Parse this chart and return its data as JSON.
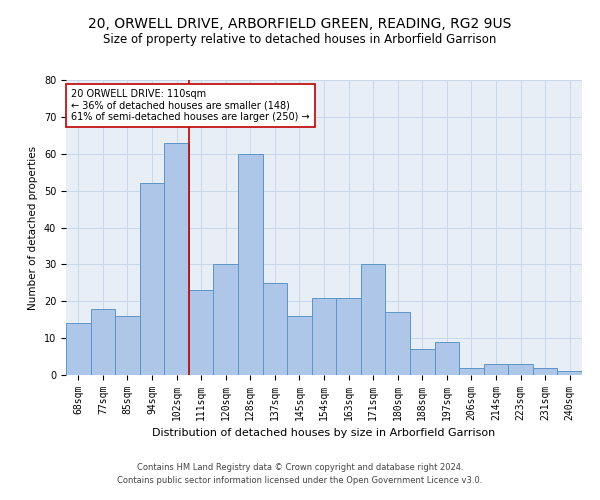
{
  "title": "20, ORWELL DRIVE, ARBORFIELD GREEN, READING, RG2 9US",
  "subtitle": "Size of property relative to detached houses in Arborfield Garrison",
  "xlabel": "Distribution of detached houses by size in Arborfield Garrison",
  "ylabel": "Number of detached properties",
  "footer1": "Contains HM Land Registry data © Crown copyright and database right 2024.",
  "footer2": "Contains public sector information licensed under the Open Government Licence v3.0.",
  "categories": [
    "68sqm",
    "77sqm",
    "85sqm",
    "94sqm",
    "102sqm",
    "111sqm",
    "120sqm",
    "128sqm",
    "137sqm",
    "145sqm",
    "154sqm",
    "163sqm",
    "171sqm",
    "180sqm",
    "188sqm",
    "197sqm",
    "206sqm",
    "214sqm",
    "223sqm",
    "231sqm",
    "240sqm"
  ],
  "values": [
    14,
    18,
    16,
    52,
    63,
    23,
    30,
    60,
    25,
    16,
    21,
    21,
    30,
    17,
    7,
    9,
    2,
    3,
    3,
    2,
    1
  ],
  "bar_color": "#aec6e8",
  "bar_edge_color": "#5a96c8",
  "grid_color": "#c8d8e8",
  "vline_x_index": 4.5,
  "vline_color": "#c00000",
  "annotation_line1": "20 ORWELL DRIVE: 110sqm",
  "annotation_line2": "← 36% of detached houses are smaller (148)",
  "annotation_line3": "61% of semi-detached houses are larger (250) →",
  "annotation_box_color": "white",
  "annotation_box_edge_color": "#c00000",
  "ylim": [
    0,
    80
  ],
  "yticks": [
    0,
    10,
    20,
    30,
    40,
    50,
    60,
    70,
    80
  ],
  "bg_color": "#e8eef5",
  "title_fontsize": 10,
  "subtitle_fontsize": 8.5,
  "tick_fontsize": 7,
  "ylabel_fontsize": 7.5,
  "xlabel_fontsize": 8,
  "annotation_fontsize": 7,
  "footer_fontsize": 6
}
